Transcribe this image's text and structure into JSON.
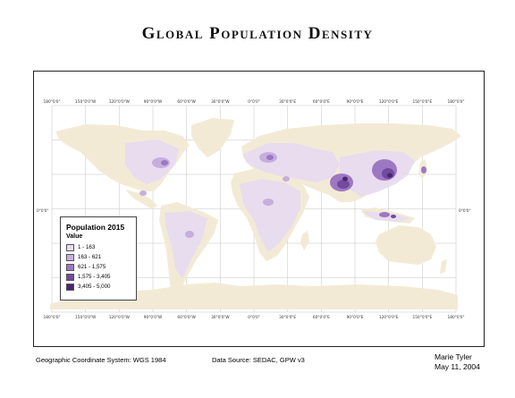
{
  "title": "Global Population Density",
  "map": {
    "colors": {
      "land": "#f3ead6",
      "ocean": "#ffffff",
      "grid": "#bdbdbd",
      "frame": "#222222"
    },
    "lon_labels": [
      "180°0'0\"",
      "150°0'0\"W",
      "120°0'0\"W",
      "90°0'0\"W",
      "60°0'0\"W",
      "30°0'0\"W",
      "0°0'0\"",
      "30°0'0\"E",
      "60°0'0\"E",
      "90°0'0\"E",
      "120°0'0\"E",
      "150°0'0\"E",
      "180°0'0\""
    ],
    "equator_label": "0°0'0\""
  },
  "legend": {
    "title": "Population 2015",
    "subtitle": "Value",
    "classes": [
      {
        "label": "1 - 163",
        "color": "#e7dbf1"
      },
      {
        "label": "163 - 621",
        "color": "#c7aedd"
      },
      {
        "label": "621 - 1,575",
        "color": "#9d78c2"
      },
      {
        "label": "1,575 - 3,405",
        "color": "#724a9e"
      },
      {
        "label": "3,405 - 5,000",
        "color": "#4b2472"
      }
    ]
  },
  "footer": {
    "coordinate_system": "Geographic Coordinate System: WGS 1984",
    "data_source": "Data Source: SEDAC, GPW v3",
    "author": "Marie Tyler",
    "date": "May 11, 2004"
  }
}
